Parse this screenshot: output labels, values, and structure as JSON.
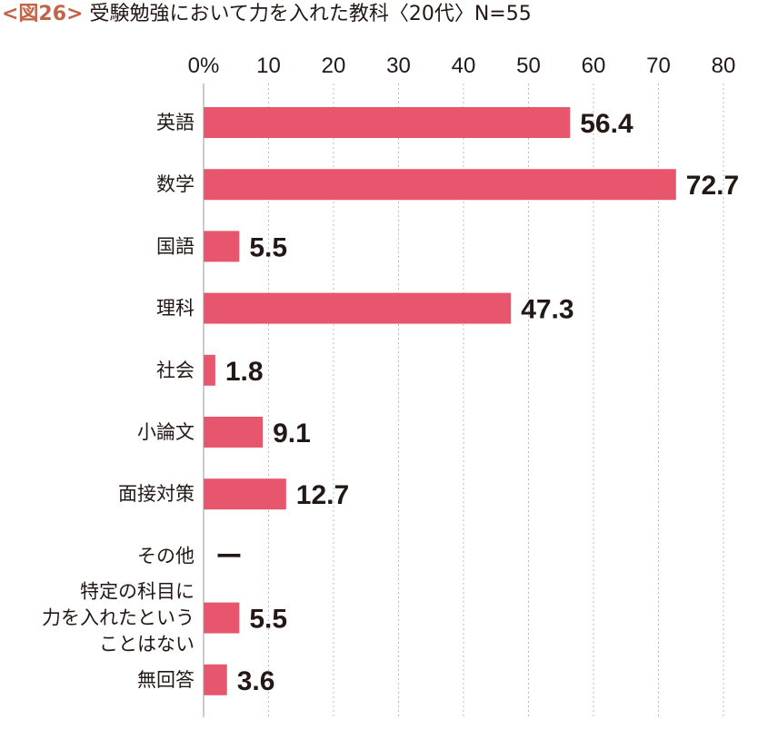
{
  "title": {
    "figure_label": "<図26>",
    "text": "受験勉強において力を入れた教科〈20代〉N=55"
  },
  "colors": {
    "bar": "#e8566d",
    "figure_label": "#c0654a",
    "grid": "#bbbbbb",
    "text": "#231815"
  },
  "chart_data": {
    "type": "bar",
    "orientation": "horizontal",
    "xlim": [
      0,
      80
    ],
    "x_ticks": [
      "0%",
      "10",
      "20",
      "30",
      "40",
      "50",
      "60",
      "70",
      "80"
    ],
    "grid": "vertical dotted",
    "categories": [
      "英語",
      "数学",
      "国語",
      "理科",
      "社会",
      "小論文",
      "面接対策",
      "その他",
      "特定の科目に\n力を入れたという\nことはない",
      "無回答"
    ],
    "values": [
      56.4,
      72.7,
      5.5,
      47.3,
      1.8,
      9.1,
      12.7,
      null,
      5.5,
      3.6
    ],
    "value_labels": [
      "56.4",
      "72.7",
      "5.5",
      "47.3",
      "1.8",
      "9.1",
      "12.7",
      "ー",
      "5.5",
      "3.6"
    ]
  }
}
